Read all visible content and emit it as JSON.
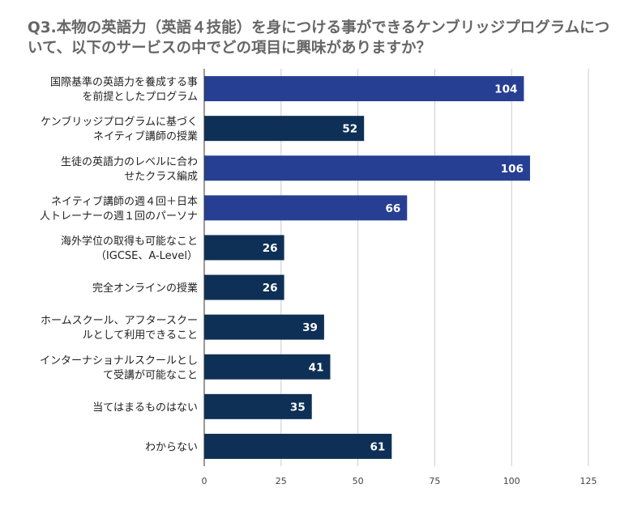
{
  "chart_data": {
    "type": "bar",
    "orientation": "horizontal",
    "title": "Q3.本物の英語力（英語４技能）を身につける事ができるケンブリッジプログラムについて、以下のサービスの中でどの項目に興味がありますか？",
    "title_lines": [
      "Q3.本物の英語力（英語４技能）を身につける事ができるケンブリッジプログラムにつ",
      "いて、以下のサービスの中でどの項目に興味がありますか？"
    ],
    "categories": [
      [
        "国際基準の英語力を養成する事",
        "を前提としたプログラム"
      ],
      [
        "ケンブリッジプログラムに基づく",
        "ネイティブ講師の授業"
      ],
      [
        "生徒の英語力のレベルに合わ",
        "せたクラス編成"
      ],
      [
        "ネイティブ講師の週４回＋日本",
        "人トレーナーの週１回のパーソナ"
      ],
      [
        "海外学位の取得も可能なこと",
        "（IGCSE、A-Level）"
      ],
      [
        "完全オンラインの授業"
      ],
      [
        "ホームスクール、アフタースクー",
        "ルとして利用できること"
      ],
      [
        "インターナショナルスクールとし",
        "て受講が可能なこと"
      ],
      [
        "当てはまるものはない"
      ],
      [
        "わからない"
      ]
    ],
    "values": [
      104,
      52,
      106,
      66,
      26,
      26,
      39,
      41,
      35,
      61
    ],
    "data_labels": [
      "104",
      "52",
      "106",
      "66",
      "26",
      "26",
      "39",
      "41",
      "35",
      "61"
    ],
    "bar_colors": [
      "#273f93",
      "#0e3056",
      "#273f93",
      "#273f93",
      "#0e3056",
      "#0e3056",
      "#0e3056",
      "#0e3056",
      "#0e3056",
      "#0e3056"
    ],
    "xlim": [
      0,
      125
    ],
    "xticks": [
      "0",
      "25",
      "50",
      "75",
      "100",
      "125"
    ],
    "xlabel": "",
    "ylabel": "",
    "grid": true,
    "legend": "none"
  }
}
